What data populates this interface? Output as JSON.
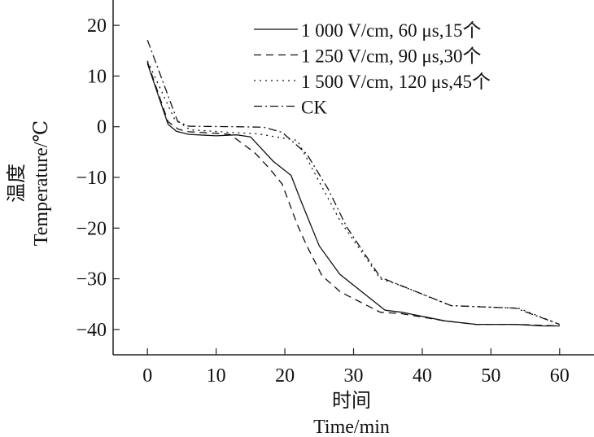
{
  "chart_data": {
    "type": "line",
    "title": "",
    "xlabel_cn": "时间",
    "xlabel": "Time/min",
    "ylabel_cn": "温度",
    "ylabel": "Temperature/℃",
    "xlim": [
      -5,
      65
    ],
    "ylim": [
      -45,
      25
    ],
    "xticks": [
      0,
      10,
      20,
      30,
      40,
      50,
      60
    ],
    "yticks": [
      20,
      10,
      0,
      -10,
      -20,
      -30,
      -40
    ],
    "ytick_labels": [
      "20",
      "10",
      "0",
      "−10",
      "−20",
      "−30",
      "−40"
    ],
    "grid": false,
    "legend_position": "top-right",
    "series": [
      {
        "name": "1 000 V/cm, 60  μs,15个",
        "style": "solid",
        "x": [
          0,
          3,
          4.2,
          6,
          10,
          13,
          15,
          18.3,
          20.9,
          22.3,
          25,
          28,
          34.6,
          37,
          43.3,
          47.8,
          53.6,
          57.6,
          60
        ],
        "y": [
          12.5,
          0.5,
          -0.9,
          -1.5,
          -1.8,
          -1.6,
          -2.0,
          -6.8,
          -9.6,
          -14.5,
          -23.5,
          -29.1,
          -36.2,
          -36.6,
          -38.3,
          -39,
          -39,
          -39.3,
          -39.3
        ]
      },
      {
        "name": "1 250 V/cm, 90  μs,30个",
        "style": "dashed",
        "x": [
          0,
          3,
          4.5,
          6,
          10,
          12,
          15.6,
          17.8,
          19.6,
          21.8,
          23.2,
          25.4,
          28.1,
          33.9,
          37,
          43.3,
          47.8,
          53.6,
          60
        ],
        "y": [
          12.8,
          1.0,
          -0.5,
          -1.0,
          -1.3,
          -1.5,
          -5.1,
          -8.3,
          -11.3,
          -19.3,
          -23.5,
          -29.4,
          -32.6,
          -36.6,
          -36.9,
          -38.3,
          -39,
          -39,
          -39.3
        ]
      },
      {
        "name": "1 500 V/cm, 120  μs,45个",
        "style": "dotted",
        "x": [
          0,
          3.9,
          6.2,
          12,
          16,
          21.8,
          24.5,
          28.1,
          33.9,
          36.2,
          44.2,
          54,
          60
        ],
        "y": [
          13,
          1.6,
          -0.6,
          -1.1,
          -1.4,
          -2.7,
          -9.6,
          -18.7,
          -30,
          -31,
          -35.3,
          -35.8,
          -39
        ]
      },
      {
        "name": "CK",
        "style": "dashdot",
        "x": [
          0,
          4.4,
          6,
          12.9,
          16.9,
          19.6,
          23.2,
          26.3,
          29,
          33.9,
          44.2,
          53.6,
          60
        ],
        "y": [
          17.1,
          1.0,
          0.1,
          0,
          -0.1,
          -1.1,
          -5.4,
          -12.3,
          -19.8,
          -29.7,
          -35.3,
          -35.8,
          -39
        ]
      }
    ]
  }
}
